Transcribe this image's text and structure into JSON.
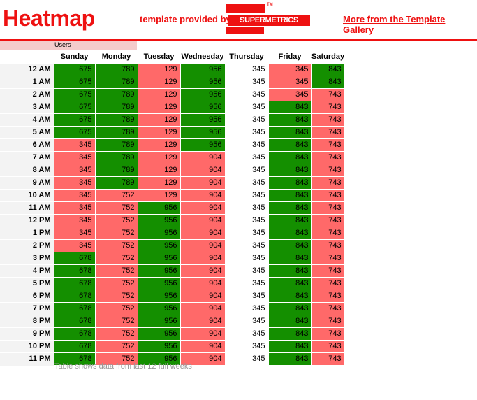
{
  "header": {
    "title": "Heatmap",
    "provided_by": "template provided by:",
    "logo_text": "SUPERMETRICS",
    "logo_tm": "TM",
    "gallery_link": "More from the Template Gallery"
  },
  "metric_label": "Users",
  "footnote": "Table shows data from last 12 full weeks",
  "colors": {
    "accent": "#ee1111",
    "low": "#ff4444",
    "high": "#148f00",
    "lightest": "#ffffff"
  },
  "chart_data": {
    "type": "heatmap",
    "title": "Heatmap",
    "metric": "Users",
    "columns": [
      "Sunday",
      "Monday",
      "Tuesday",
      "Wednesday",
      "Thursday",
      "Friday",
      "Saturday"
    ],
    "rows": [
      "12 AM",
      "1 AM",
      "2 AM",
      "3 AM",
      "4 AM",
      "5 AM",
      "6 AM",
      "7 AM",
      "8 AM",
      "9 AM",
      "10 AM",
      "11 AM",
      "12 PM",
      "1 PM",
      "2 PM",
      "3 PM",
      "4 PM",
      "5 PM",
      "6 PM",
      "7 PM",
      "8 PM",
      "9 PM",
      "10 PM",
      "11 PM"
    ],
    "values": [
      [
        675,
        789,
        129,
        956,
        345,
        345,
        843
      ],
      [
        675,
        789,
        129,
        956,
        345,
        345,
        843
      ],
      [
        675,
        789,
        129,
        956,
        345,
        345,
        743
      ],
      [
        675,
        789,
        129,
        956,
        345,
        843,
        743
      ],
      [
        675,
        789,
        129,
        956,
        345,
        843,
        743
      ],
      [
        675,
        789,
        129,
        956,
        345,
        843,
        743
      ],
      [
        345,
        789,
        129,
        956,
        345,
        843,
        743
      ],
      [
        345,
        789,
        129,
        904,
        345,
        843,
        743
      ],
      [
        345,
        789,
        129,
        904,
        345,
        843,
        743
      ],
      [
        345,
        789,
        129,
        904,
        345,
        843,
        743
      ],
      [
        345,
        752,
        129,
        904,
        345,
        843,
        743
      ],
      [
        345,
        752,
        956,
        904,
        345,
        843,
        743
      ],
      [
        345,
        752,
        956,
        904,
        345,
        843,
        743
      ],
      [
        345,
        752,
        956,
        904,
        345,
        843,
        743
      ],
      [
        345,
        752,
        956,
        904,
        345,
        843,
        743
      ],
      [
        678,
        752,
        956,
        904,
        345,
        843,
        743
      ],
      [
        678,
        752,
        956,
        904,
        345,
        843,
        743
      ],
      [
        678,
        752,
        956,
        904,
        345,
        843,
        743
      ],
      [
        678,
        752,
        956,
        904,
        345,
        843,
        743
      ],
      [
        678,
        752,
        956,
        904,
        345,
        843,
        743
      ],
      [
        678,
        752,
        956,
        904,
        345,
        843,
        743
      ],
      [
        678,
        752,
        956,
        904,
        345,
        843,
        743
      ],
      [
        678,
        752,
        956,
        904,
        345,
        843,
        743
      ],
      [
        678,
        752,
        956,
        904,
        345,
        843,
        743
      ]
    ]
  }
}
